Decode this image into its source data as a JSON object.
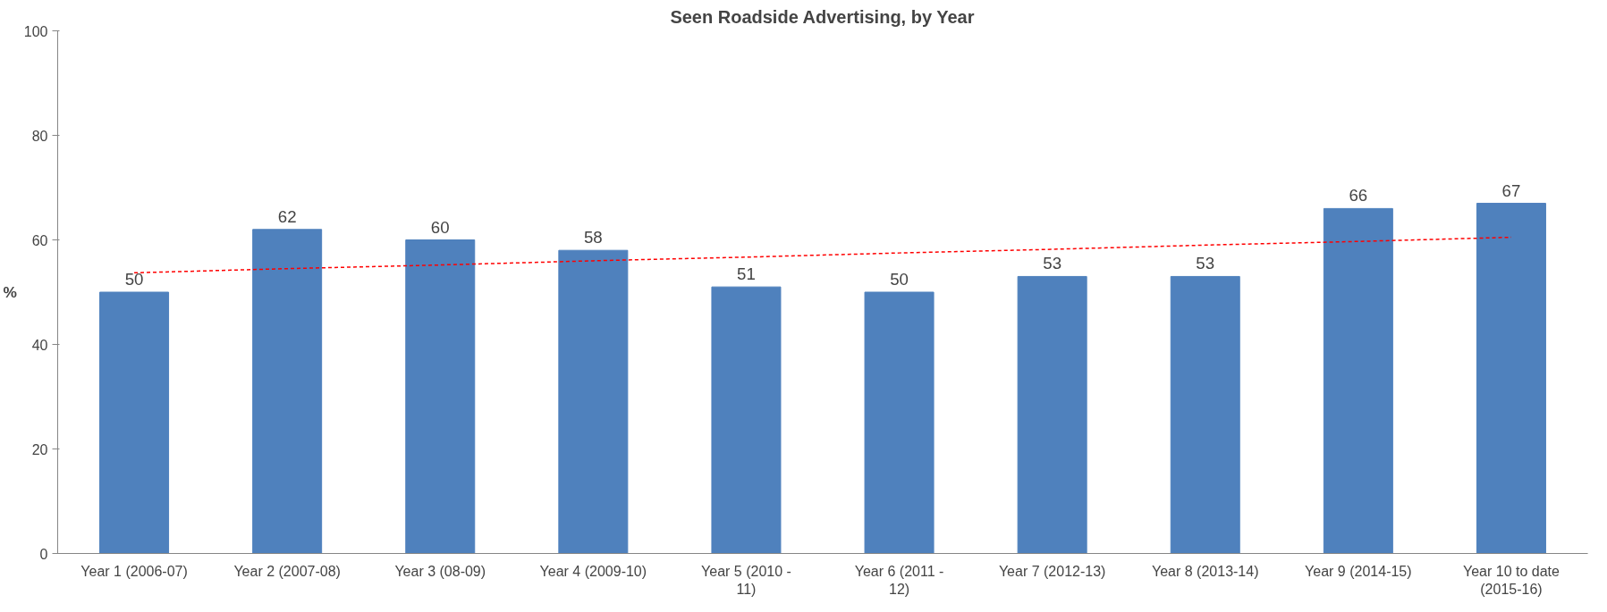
{
  "chart_data": {
    "type": "bar",
    "title": "Seen Roadside Advertising, by Year",
    "ylabel": "%",
    "categories": [
      "Year 1 (2006-07)",
      "Year 2 (2007-08)",
      "Year 3 (08-09)",
      "Year 4 (2009-10)",
      "Year 5 (2010 - 11)",
      "Year 6 (2011 - 12)",
      "Year 7 (2012-13)",
      "Year 8 (2013-14)",
      "Year 9 (2014-15)",
      "Year 10 to date (2015-16)"
    ],
    "series": [
      {
        "color": "#4f81bd",
        "values": [
          50,
          62,
          60,
          58,
          51,
          50,
          53,
          53,
          66,
          67
        ],
        "value_labels": [
          "50",
          "62",
          "60",
          "58",
          "51",
          "50",
          "53",
          "53",
          "66",
          "67"
        ]
      },
      {
        "type": "line",
        "color": "#ff0000",
        "line_style": "dashed",
        "values": [
          53.7,
          54.5,
          55.2,
          56.0,
          56.7,
          57.5,
          58.2,
          59.0,
          59.7,
          60.5
        ]
      }
    ],
    "ylim": [
      0,
      100
    ],
    "yticks": [
      0,
      20,
      40,
      60,
      80,
      100
    ],
    "grid": false
  }
}
